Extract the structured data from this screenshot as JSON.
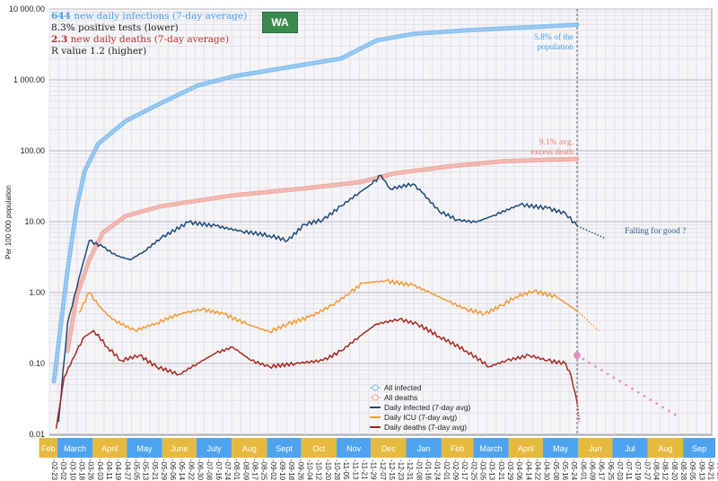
{
  "info": {
    "infections_value": "644",
    "infections_text": " new daily infections (7-day average)",
    "positive_tests": "8.3% positive tests (lower)",
    "deaths_value": "2.3",
    "deaths_text": " new daily deaths (7-day average)",
    "r_value": "R value 1.2 (higher)"
  },
  "logo": "WA",
  "annotations": {
    "population_1": "5.8% of the",
    "population_2": "population",
    "excess_1": "9.1% avg.",
    "excess_2": "excess death",
    "falling": "Falling for good ?"
  },
  "chart_data": {
    "type": "line",
    "title": "",
    "xlabel": "",
    "ylabel": "Per 100 000 population",
    "yscale": "log",
    "ylim": [
      0.01,
      10000
    ],
    "y_ticks": [
      {
        "v": 10000,
        "label": "10 000.00"
      },
      {
        "v": 1000,
        "label": "1 000.00"
      },
      {
        "v": 100,
        "label": "100.00"
      },
      {
        "v": 10,
        "label": "10.00"
      },
      {
        "v": 1,
        "label": "1.00"
      },
      {
        "v": 0.1,
        "label": "0.10"
      },
      {
        "v": 0.01,
        "label": "0.01"
      }
    ],
    "x_start": "2020-02-23",
    "x_unit": "days since 2020-02-23",
    "today_day": 463,
    "x_tick_labels": [
      "02-23",
      "03-02",
      "03-10",
      "03-18",
      "03-26",
      "04-03",
      "04-11",
      "04-19",
      "04-27",
      "05-05",
      "05-13",
      "05-21",
      "05-29",
      "06-06",
      "06-14",
      "06-22",
      "06-30",
      "07-08",
      "07-16",
      "07-24",
      "08-01",
      "08-09",
      "08-17",
      "08-25",
      "09-02",
      "09-10",
      "09-18",
      "09-26",
      "10-04",
      "10-12",
      "10-20",
      "10-28",
      "11-05",
      "11-13",
      "11-21",
      "11-29",
      "12-07",
      "12-15",
      "12-23",
      "12-31",
      "01-08",
      "01-16",
      "01-24",
      "02-01",
      "02-09",
      "02-17",
      "02-25",
      "03-05",
      "03-13",
      "03-21",
      "03-29",
      "04-06",
      "04-14",
      "04-22",
      "04-30",
      "05-08",
      "05-16",
      "05-24",
      "06-01",
      "06-09",
      "06-17",
      "06-25",
      "07-03",
      "07-11",
      "07-19",
      "07-27",
      "08-04",
      "08-12",
      "08-20",
      "08-28",
      "09-05",
      "09-13",
      "09-21",
      "09-29"
    ],
    "months": [
      {
        "label": "Feb",
        "start": "2020-02-14",
        "end": "2020-03-01",
        "color": "#e6b93f"
      },
      {
        "label": "March",
        "start": "2020-03-01",
        "end": "2020-04-01",
        "color": "#4ea3ef"
      },
      {
        "label": "April",
        "start": "2020-04-01",
        "end": "2020-05-01",
        "color": "#e6b93f"
      },
      {
        "label": "May",
        "start": "2020-05-01",
        "end": "2020-06-01",
        "color": "#4ea3ef"
      },
      {
        "label": "June",
        "start": "2020-06-01",
        "end": "2020-07-01",
        "color": "#e6b93f"
      },
      {
        "label": "July",
        "start": "2020-07-01",
        "end": "2020-08-01",
        "color": "#4ea3ef"
      },
      {
        "label": "Aug",
        "start": "2020-08-01",
        "end": "2020-09-01",
        "color": "#e6b93f"
      },
      {
        "label": "Sept",
        "start": "2020-09-01",
        "end": "2020-10-01",
        "color": "#4ea3ef"
      },
      {
        "label": "Oct",
        "start": "2020-10-01",
        "end": "2020-11-01",
        "color": "#e6b93f"
      },
      {
        "label": "Nov",
        "start": "2020-11-01",
        "end": "2020-12-01",
        "color": "#4ea3ef"
      },
      {
        "label": "Dec",
        "start": "2020-12-01",
        "end": "2021-01-01",
        "color": "#e6b93f"
      },
      {
        "label": "Jan",
        "start": "2021-01-01",
        "end": "2021-02-01",
        "color": "#4ea3ef"
      },
      {
        "label": "Feb",
        "start": "2021-02-01",
        "end": "2021-03-01",
        "color": "#e6b93f"
      },
      {
        "label": "March",
        "start": "2021-03-01",
        "end": "2021-04-01",
        "color": "#4ea3ef"
      },
      {
        "label": "April",
        "start": "2021-04-01",
        "end": "2021-05-01",
        "color": "#e6b93f"
      },
      {
        "label": "May",
        "start": "2021-05-01",
        "end": "2021-06-01",
        "color": "#4ea3ef"
      },
      {
        "label": "Jun",
        "start": "2021-06-01",
        "end": "2021-07-01",
        "color": "#e6b93f"
      },
      {
        "label": "Jul",
        "start": "2021-07-01",
        "end": "2021-08-01",
        "color": "#4ea3ef"
      },
      {
        "label": "Aug",
        "start": "2021-08-01",
        "end": "2021-09-01",
        "color": "#e6b93f"
      },
      {
        "label": "Sep",
        "start": "2021-09-01",
        "end": "2021-10-03",
        "color": "#4ea3ef"
      }
    ],
    "series": [
      {
        "name": "All infected",
        "color": "#7ab8ee",
        "style": "thick",
        "points": [
          [
            4,
            0.056
          ],
          [
            16,
            2.1
          ],
          [
            24,
            16
          ],
          [
            31,
            52
          ],
          [
            43,
            126
          ],
          [
            67,
            263
          ],
          [
            98,
            470
          ],
          [
            130,
            830
          ],
          [
            161,
            1120
          ],
          [
            209,
            1500
          ],
          [
            256,
            2000
          ],
          [
            287,
            3600
          ],
          [
            319,
            4450
          ],
          [
            366,
            5000
          ],
          [
            429,
            5600
          ],
          [
            463,
            6000
          ]
        ]
      },
      {
        "name": "All deaths",
        "color": "#f0a39a",
        "style": "thick",
        "points": [
          [
            16,
            0.15
          ],
          [
            24,
            0.9
          ],
          [
            35,
            2.9
          ],
          [
            47,
            7
          ],
          [
            67,
            12
          ],
          [
            98,
            16.5
          ],
          [
            161,
            23.5
          ],
          [
            224,
            29.5
          ],
          [
            272,
            36
          ],
          [
            303,
            48
          ],
          [
            350,
            60
          ],
          [
            397,
            71
          ],
          [
            463,
            77
          ]
        ]
      },
      {
        "name": "Daily infected (7-day avg)",
        "color": "#21497a",
        "style": "line",
        "points": [
          [
            8,
            0.015
          ],
          [
            16,
            0.37
          ],
          [
            28,
            2.1
          ],
          [
            35,
            5.4
          ],
          [
            47,
            4.4
          ],
          [
            59,
            3.3
          ],
          [
            71,
            2.9
          ],
          [
            83,
            3.8
          ],
          [
            98,
            5.9
          ],
          [
            122,
            9.8
          ],
          [
            146,
            8.7
          ],
          [
            169,
            7.3
          ],
          [
            193,
            6.4
          ],
          [
            209,
            5.4
          ],
          [
            224,
            9.2
          ],
          [
            240,
            10.6
          ],
          [
            256,
            16.6
          ],
          [
            272,
            25.8
          ],
          [
            283,
            34
          ],
          [
            291,
            45
          ],
          [
            299,
            29
          ],
          [
            319,
            34
          ],
          [
            327,
            25.7
          ],
          [
            342,
            14
          ],
          [
            358,
            10.6
          ],
          [
            374,
            9.8
          ],
          [
            390,
            12.3
          ],
          [
            413,
            17.4
          ],
          [
            437,
            15.5
          ],
          [
            453,
            13
          ],
          [
            463,
            8.7
          ]
        ],
        "projection": [
          [
            463,
            8.7
          ],
          [
            488,
            5.8
          ]
        ]
      },
      {
        "name": "Daily ICU (7-day avg)",
        "color": "#f29a35",
        "style": "line",
        "points": [
          [
            26,
            0.52
          ],
          [
            35,
            1.0
          ],
          [
            43,
            0.66
          ],
          [
            55,
            0.42
          ],
          [
            75,
            0.29
          ],
          [
            94,
            0.37
          ],
          [
            114,
            0.5
          ],
          [
            134,
            0.58
          ],
          [
            153,
            0.5
          ],
          [
            173,
            0.36
          ],
          [
            193,
            0.28
          ],
          [
            209,
            0.36
          ],
          [
            228,
            0.45
          ],
          [
            248,
            0.66
          ],
          [
            264,
            1.0
          ],
          [
            275,
            1.36
          ],
          [
            295,
            1.46
          ],
          [
            319,
            1.27
          ],
          [
            334,
            1.0
          ],
          [
            350,
            0.75
          ],
          [
            366,
            0.58
          ],
          [
            382,
            0.5
          ],
          [
            397,
            0.66
          ],
          [
            409,
            0.87
          ],
          [
            425,
            1.05
          ],
          [
            445,
            0.87
          ],
          [
            463,
            0.55
          ]
        ],
        "projection": [
          [
            463,
            0.55
          ],
          [
            482,
            0.29
          ]
        ]
      },
      {
        "name": "Daily deaths (7-day avg)",
        "color": "#a8281e",
        "style": "line",
        "points": [
          [
            6,
            0.012
          ],
          [
            13,
            0.064
          ],
          [
            24,
            0.15
          ],
          [
            31,
            0.24
          ],
          [
            39,
            0.29
          ],
          [
            51,
            0.17
          ],
          [
            63,
            0.11
          ],
          [
            79,
            0.13
          ],
          [
            94,
            0.09
          ],
          [
            114,
            0.07
          ],
          [
            130,
            0.1
          ],
          [
            146,
            0.14
          ],
          [
            161,
            0.17
          ],
          [
            177,
            0.11
          ],
          [
            193,
            0.09
          ],
          [
            216,
            0.1
          ],
          [
            240,
            0.11
          ],
          [
            256,
            0.15
          ],
          [
            272,
            0.24
          ],
          [
            287,
            0.36
          ],
          [
            307,
            0.42
          ],
          [
            323,
            0.36
          ],
          [
            342,
            0.24
          ],
          [
            366,
            0.15
          ],
          [
            386,
            0.09
          ],
          [
            401,
            0.11
          ],
          [
            421,
            0.13
          ],
          [
            437,
            0.11
          ],
          [
            453,
            0.1
          ],
          [
            458,
            0.064
          ],
          [
            463,
            0.028
          ]
        ],
        "projection": [
          [
            463,
            0.028
          ],
          [
            465,
            0.015
          ]
        ]
      },
      {
        "name": "Death projection",
        "color": "#e58fbf",
        "style": "dots",
        "points": [
          [
            463,
            0.13
          ],
          [
            549,
            0.019
          ]
        ]
      }
    ],
    "legend": {
      "placement": "bottom-center",
      "entries": [
        "All infected",
        "All deaths",
        "Daily infected (7-day avg)",
        "Daily ICU (7-day avg)",
        "Daily deaths (7-day avg)"
      ]
    },
    "grid": true
  }
}
